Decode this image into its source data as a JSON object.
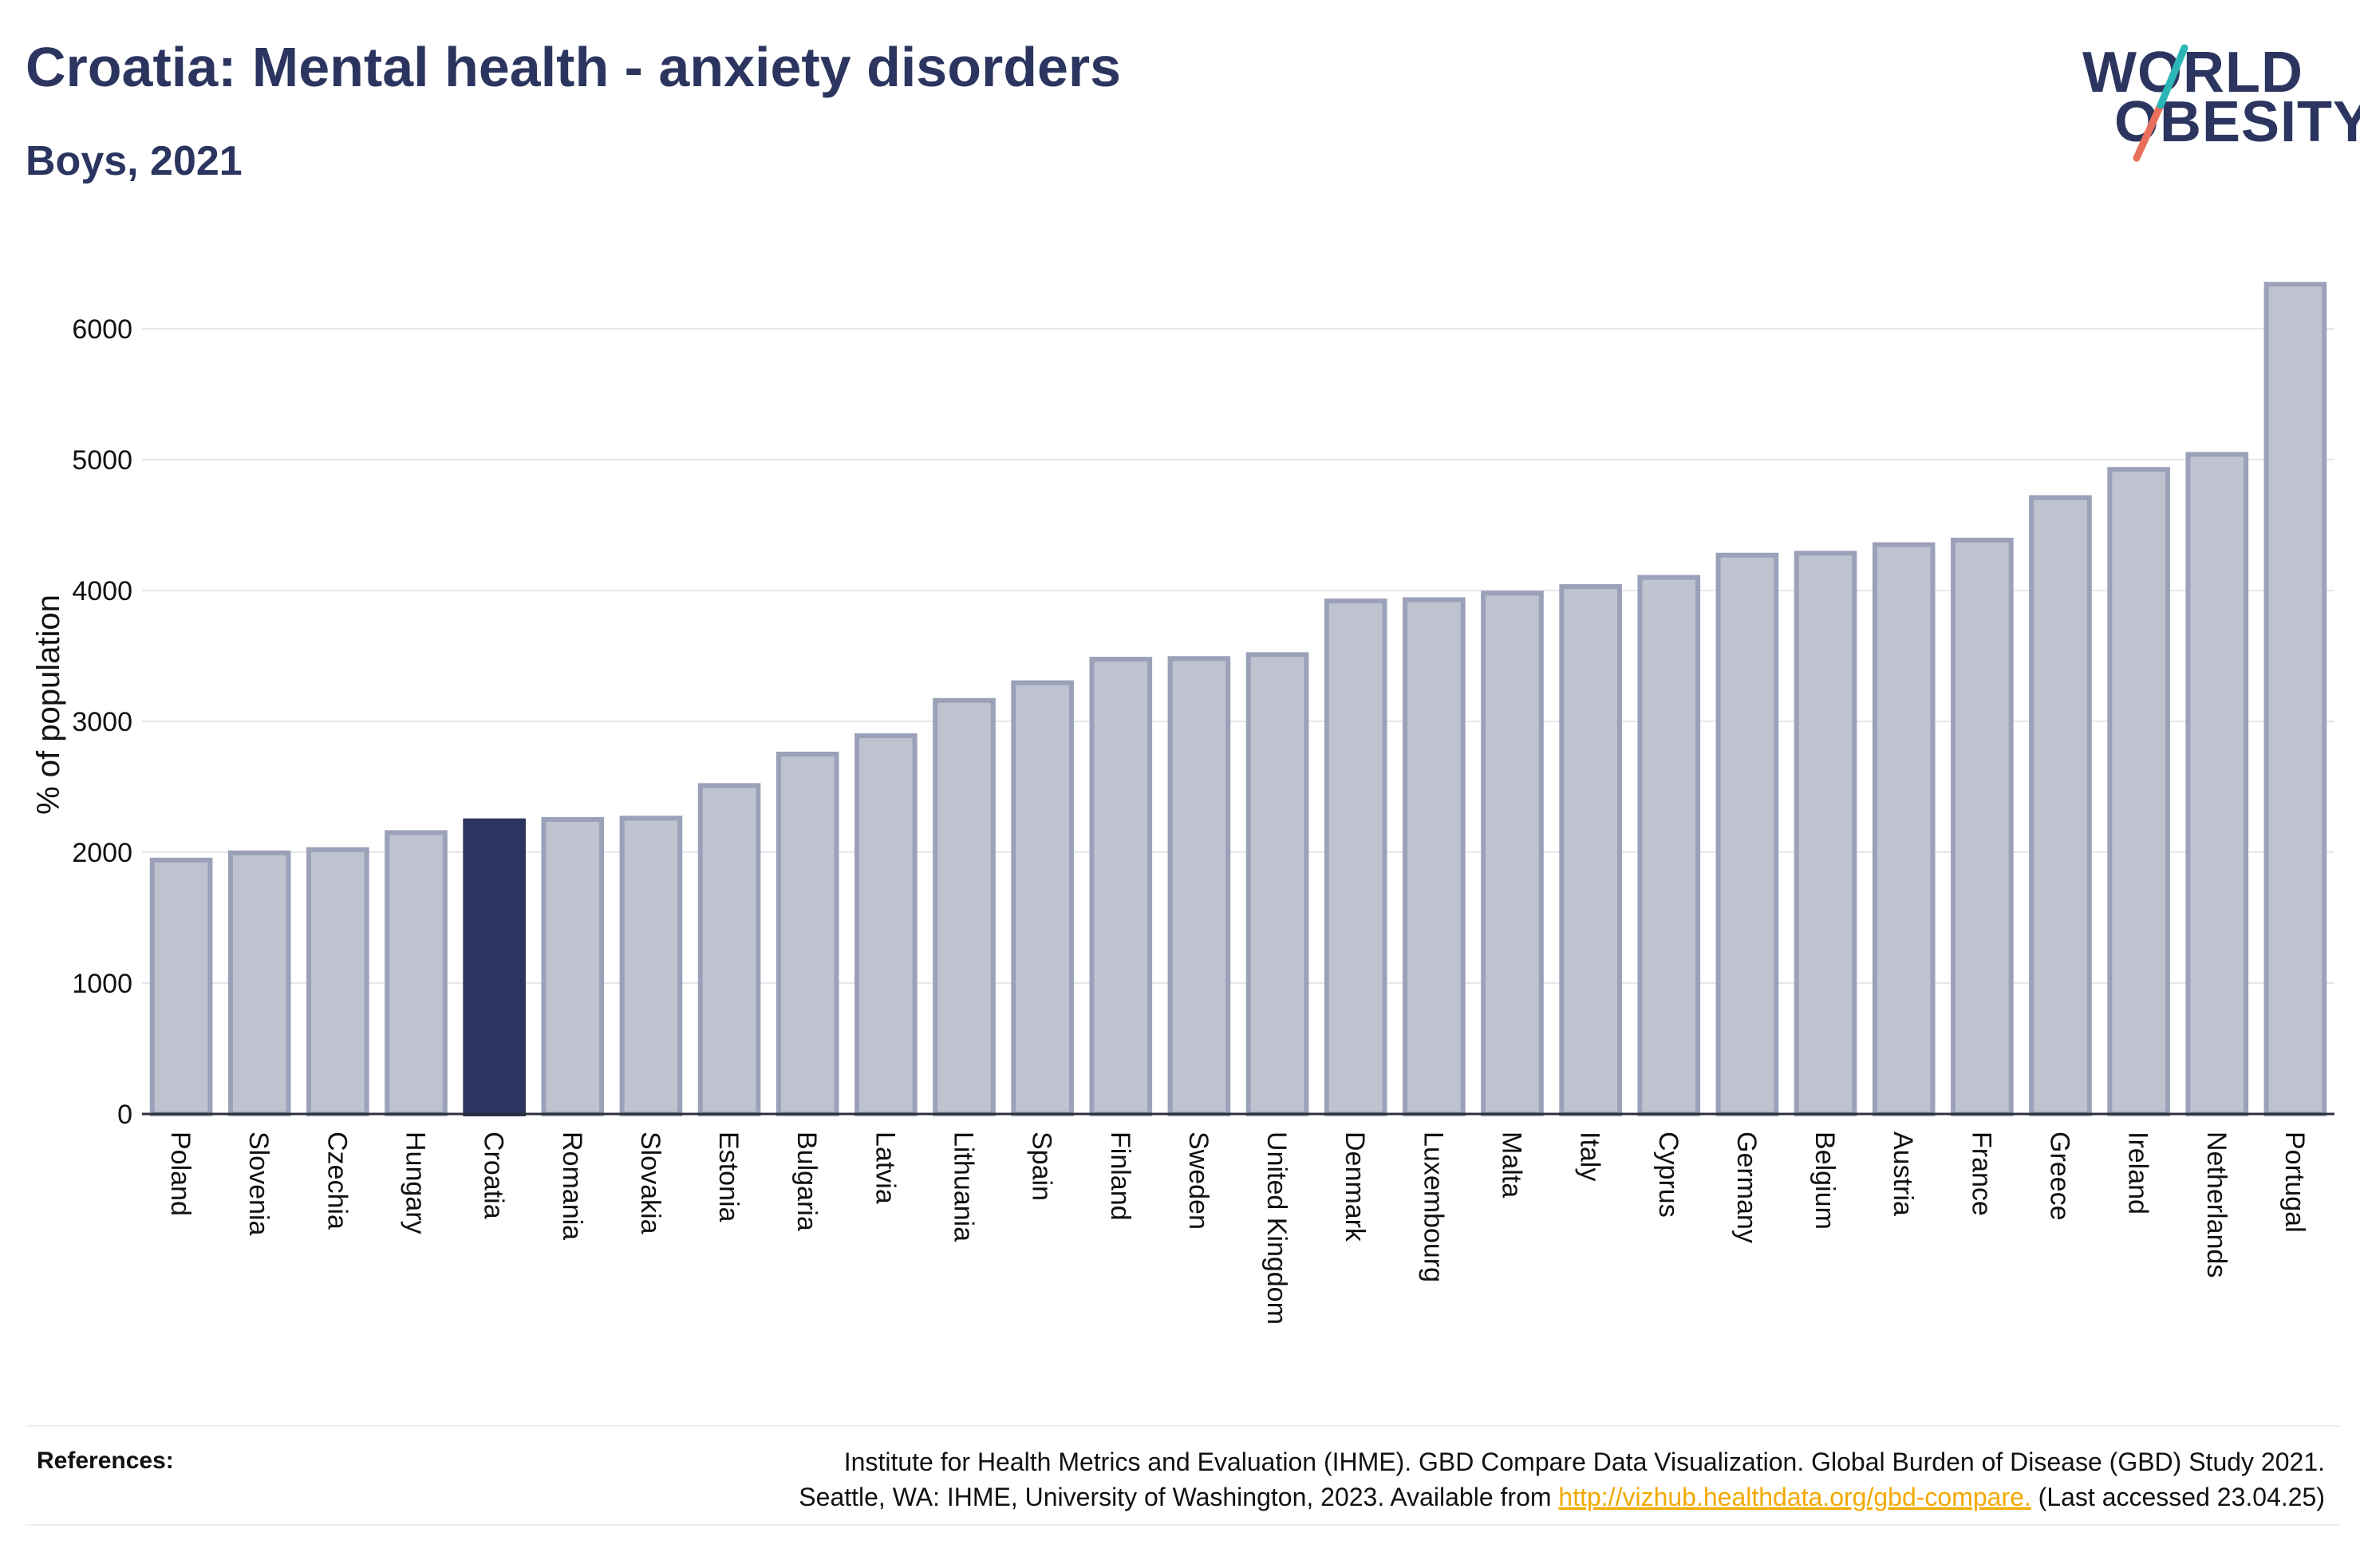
{
  "header": {
    "title": "Croatia: Mental health - anxiety disorders",
    "subtitle": "Boys, 2021"
  },
  "logo": {
    "line1": "WORLD",
    "line2": "OBESITY"
  },
  "colors": {
    "highlight": "#2b355f",
    "bar_fill": "#bfc3d0",
    "bar_stroke": "#9aa1b8",
    "accent_teal": "#2bb5b5",
    "accent_coral": "#e8705a",
    "link": "#f2a900"
  },
  "chart_data": {
    "type": "bar",
    "title": "Croatia: Mental health - anxiety disorders",
    "subtitle": "Boys, 2021",
    "xlabel": "",
    "ylabel": "% of population",
    "ylim": [
      0,
      6500
    ],
    "yticks": [
      0,
      1000,
      2000,
      3000,
      4000,
      5000,
      6000
    ],
    "grid": true,
    "highlight": "Croatia",
    "categories": [
      "Poland",
      "Slovenia",
      "Czechia",
      "Hungary",
      "Croatia",
      "Romania",
      "Slovakia",
      "Estonia",
      "Bulgaria",
      "Latvia",
      "Lithuania",
      "Spain",
      "Finland",
      "Sweden",
      "United Kingdom",
      "Denmark",
      "Luxembourg",
      "Malta",
      "Italy",
      "Cyprus",
      "Germany",
      "Belgium",
      "Austria",
      "France",
      "Greece",
      "Ireland",
      "Netherlands",
      "Portugal"
    ],
    "values": [
      1940,
      1995,
      2020,
      2150,
      2240,
      2250,
      2260,
      2510,
      2750,
      2890,
      3160,
      3295,
      3475,
      3480,
      3510,
      3920,
      3930,
      3980,
      4030,
      4100,
      4270,
      4285,
      4350,
      4385,
      4710,
      4925,
      5040,
      6340
    ]
  },
  "references": {
    "label": "References:",
    "line1": "Institute for Health Metrics and Evaluation (IHME). GBD Compare Data Visualization. Global Burden of Disease (GBD) Study 2021.",
    "line2_prefix": "Seattle, WA: IHME, University of Washington, 2023. Available from ",
    "link_text": "http://vizhub.healthdata.org/gbd-compare.",
    "line2_suffix": " (Last accessed 23.04.25)"
  }
}
